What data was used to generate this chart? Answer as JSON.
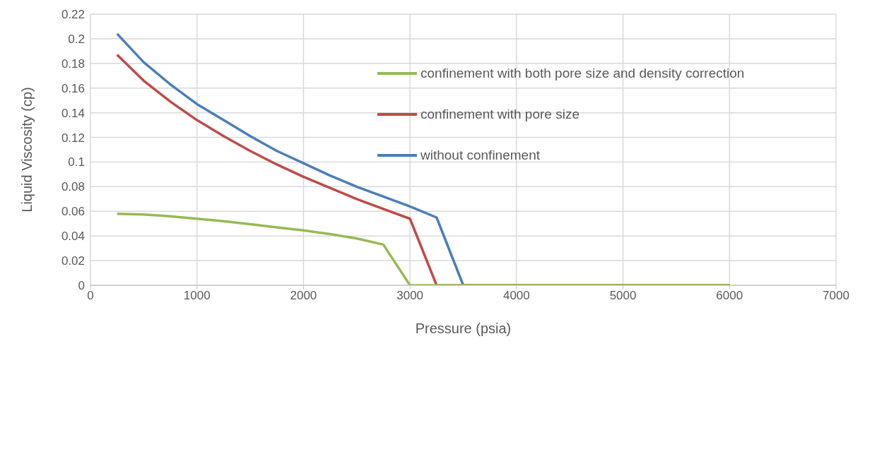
{
  "chart_data": {
    "type": "line",
    "xlabel": "Pressure (psia)",
    "ylabel": "Liquid Viscosity (cp)",
    "xlim": [
      0,
      7000
    ],
    "xticks": [
      0,
      1000,
      2000,
      3000,
      4000,
      5000,
      6000,
      7000
    ],
    "ylim": [
      0,
      0.22
    ],
    "yticks": [
      0,
      0.02,
      0.04,
      0.06,
      0.08,
      0.1,
      0.12,
      0.14,
      0.16,
      0.18,
      0.2,
      0.22
    ],
    "grid": true,
    "legend": "top right",
    "marker": "none",
    "line_style": "solid",
    "series": [
      {
        "name": "without confinement",
        "color": "#4a7ebb",
        "x": [
          250,
          500,
          750,
          1000,
          1250,
          1500,
          1750,
          2000,
          2250,
          2500,
          2750,
          3000,
          3250,
          3500,
          6000
        ],
        "values": [
          0.204,
          0.181,
          0.163,
          0.147,
          0.134,
          0.121,
          0.109,
          0.099,
          0.089,
          0.08,
          0.072,
          0.064,
          0.055,
          0,
          0
        ]
      },
      {
        "name": "confinement with pore size",
        "color": "#be4b48",
        "x": [
          250,
          500,
          750,
          1000,
          1250,
          1500,
          1750,
          2000,
          2250,
          2500,
          2750,
          3000,
          3250,
          6000
        ],
        "values": [
          0.187,
          0.166,
          0.149,
          0.134,
          0.121,
          0.109,
          0.098,
          0.088,
          0.079,
          0.07,
          0.062,
          0.054,
          0,
          0
        ]
      },
      {
        "name": "confinement with both pore size and density correction",
        "color": "#98b954",
        "x": [
          250,
          500,
          750,
          1000,
          1250,
          1500,
          1750,
          2000,
          2250,
          2500,
          2750,
          3000,
          6000
        ],
        "values": [
          0.058,
          0.0575,
          0.056,
          0.054,
          0.052,
          0.0495,
          0.047,
          0.0445,
          0.0415,
          0.038,
          0.033,
          0,
          0
        ]
      }
    ]
  }
}
